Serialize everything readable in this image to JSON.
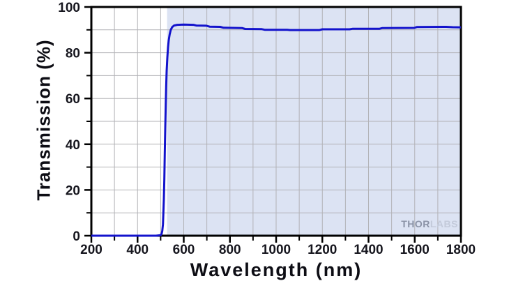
{
  "figure": {
    "watermark": {
      "part1": "THOR",
      "part2": "LABS"
    }
  },
  "chart_data": {
    "type": "line",
    "title": "",
    "xlabel": "Wavelength (nm)",
    "ylabel": "Transmission (%)",
    "xlim": [
      200,
      1800
    ],
    "ylim": [
      0,
      100
    ],
    "x_major_ticks": [
      200,
      400,
      600,
      800,
      1000,
      1200,
      1400,
      1600,
      1800
    ],
    "x_minor_ticks": [
      300,
      500,
      700,
      900,
      1100,
      1300,
      1500,
      1700
    ],
    "y_major_ticks": [
      0,
      20,
      40,
      60,
      80,
      100
    ],
    "y_minor_ticks": [
      10,
      30,
      50,
      70,
      90
    ],
    "grid": {
      "on": true,
      "x_step": 100,
      "y_step": 10,
      "color": "#b2b2b6"
    },
    "shaded_region": {
      "x_start": 528,
      "x_end": 1800,
      "color": "#dce3f3"
    },
    "legend": {
      "visible": false
    },
    "axis_color": "#000000",
    "tick_label_color": "#16161e",
    "series": [
      {
        "name": "Transmission",
        "color": "#1313cc",
        "points": [
          [
            200,
            0
          ],
          [
            250,
            0
          ],
          [
            300,
            0
          ],
          [
            350,
            0
          ],
          [
            400,
            0
          ],
          [
            450,
            0
          ],
          [
            480,
            0
          ],
          [
            500,
            0.2
          ],
          [
            504,
            0.8
          ],
          [
            507,
            2
          ],
          [
            510,
            5
          ],
          [
            512,
            10
          ],
          [
            514,
            16
          ],
          [
            516,
            25
          ],
          [
            518,
            36
          ],
          [
            520,
            47
          ],
          [
            522,
            57
          ],
          [
            524,
            65
          ],
          [
            526,
            72
          ],
          [
            529,
            78
          ],
          [
            532,
            82.5
          ],
          [
            535,
            85.5
          ],
          [
            539,
            88
          ],
          [
            544,
            90
          ],
          [
            550,
            91.2
          ],
          [
            558,
            91.9
          ],
          [
            572,
            92.2
          ],
          [
            600,
            92.3
          ],
          [
            642,
            92.2
          ],
          [
            654,
            91.9
          ],
          [
            698,
            91.8
          ],
          [
            712,
            91.4
          ],
          [
            758,
            91.3
          ],
          [
            772,
            90.9
          ],
          [
            852,
            90.8
          ],
          [
            866,
            90.4
          ],
          [
            938,
            90.3
          ],
          [
            952,
            90.0
          ],
          [
            1048,
            90.0
          ],
          [
            1060,
            89.9
          ],
          [
            1188,
            89.9
          ],
          [
            1200,
            90.25
          ],
          [
            1318,
            90.25
          ],
          [
            1332,
            90.5
          ],
          [
            1448,
            90.5
          ],
          [
            1460,
            90.8
          ],
          [
            1598,
            90.85
          ],
          [
            1610,
            91.25
          ],
          [
            1736,
            91.3
          ],
          [
            1764,
            91.15
          ],
          [
            1800,
            91.1
          ]
        ]
      }
    ]
  }
}
